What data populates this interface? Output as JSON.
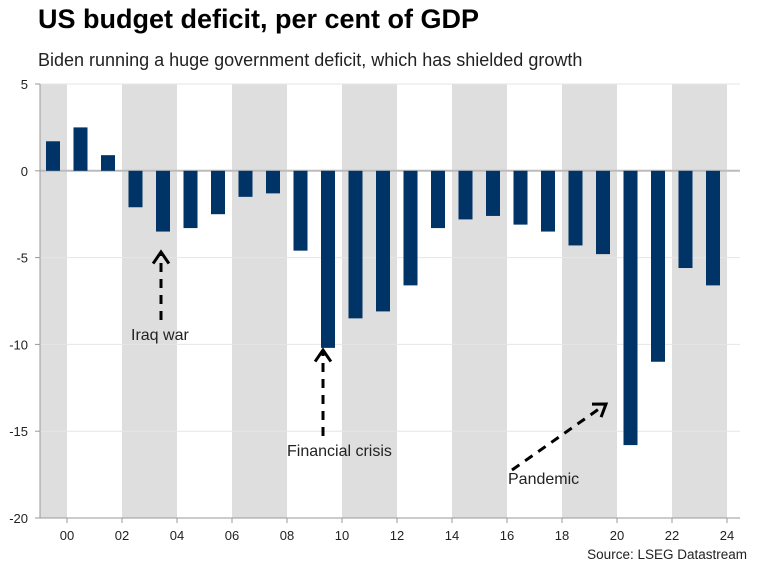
{
  "title": "US budget deficit, per cent of GDP",
  "subtitle": "Biden running a huge government deficit, which has shielded growth",
  "source": "Source: LSEG Datastream",
  "colors": {
    "bar": "#003366",
    "band": "#dedede",
    "grid": "#e6e6e6"
  },
  "chart_data": {
    "type": "bar",
    "categories": [
      "2000",
      "2001",
      "2002",
      "2003",
      "2004",
      "2005",
      "2006",
      "2007",
      "2008",
      "2009",
      "2010",
      "2011",
      "2012",
      "2013",
      "2014",
      "2015",
      "2016",
      "2017",
      "2018",
      "2019",
      "2020",
      "2021",
      "2022",
      "2023",
      "2024"
    ],
    "values": [
      1.7,
      2.5,
      0.9,
      -2.1,
      -3.5,
      -3.3,
      -2.5,
      -1.5,
      -1.3,
      -4.6,
      -10.2,
      -8.5,
      -8.1,
      -6.6,
      -3.3,
      -2.8,
      -2.6,
      -3.1,
      -3.5,
      -4.3,
      -4.8,
      -15.8,
      -11.0,
      -5.6,
      -6.6
    ],
    "ylim": [
      -20,
      5
    ],
    "yticks": [
      "5",
      "0",
      "-5",
      "-10",
      "-15",
      "-20"
    ],
    "xtick_labels": [
      "00",
      "02",
      "04",
      "06",
      "08",
      "10",
      "12",
      "14",
      "16",
      "18",
      "20",
      "22",
      "24"
    ],
    "grid": true,
    "annotations": [
      {
        "text": "Iraq war",
        "points_to": "2004"
      },
      {
        "text": "Financial crisis",
        "points_to": "2010"
      },
      {
        "text": "Pandemic",
        "points_to": "2021"
      }
    ]
  }
}
